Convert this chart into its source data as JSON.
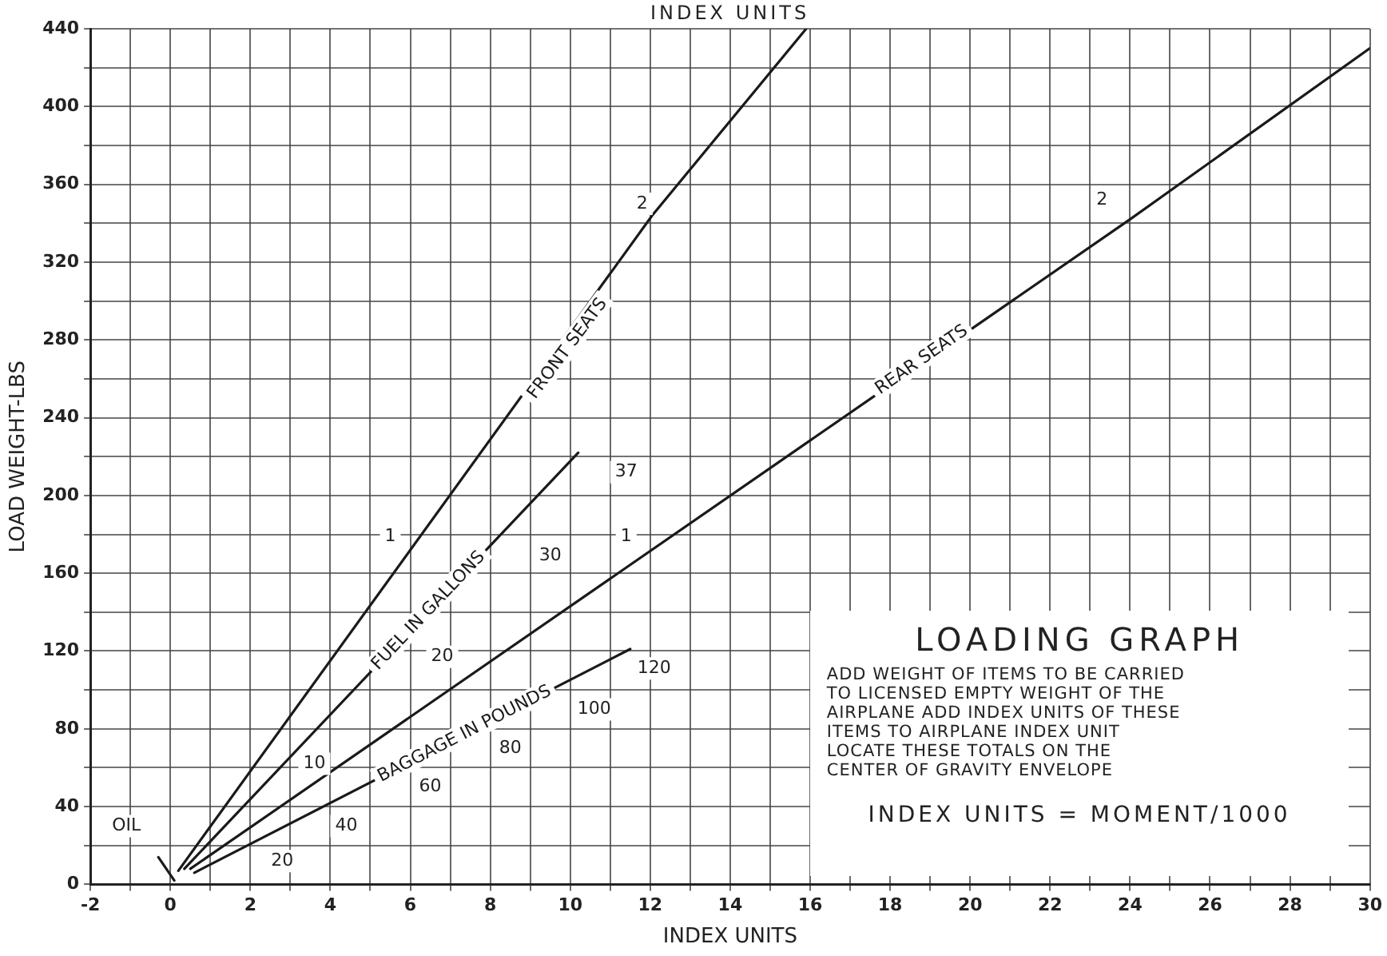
{
  "chart_data": {
    "type": "line",
    "title": "LOADING GRAPH",
    "x2label": "INDEX UNITS",
    "xlabel": "INDEX UNITS",
    "ylabel": "LOAD WEIGHT-LBS",
    "xlim": [
      -2,
      30
    ],
    "ylim": [
      0,
      440
    ],
    "xticks": [
      -2,
      {
        "value": -1,
        "label": null
      },
      0,
      {
        "value": 1,
        "label": null
      },
      2,
      {
        "value": 3,
        "label": null
      },
      4,
      {
        "value": 5,
        "label": null
      },
      6,
      {
        "value": 7,
        "label": null
      },
      8,
      {
        "value": 9,
        "label": null
      },
      10,
      {
        "value": 11,
        "label": null
      },
      12,
      {
        "value": 13,
        "label": null
      },
      14,
      {
        "value": 15,
        "label": null
      },
      16,
      {
        "value": 17,
        "label": null
      },
      18,
      {
        "value": 19,
        "label": null
      },
      20,
      {
        "value": 21,
        "label": null
      },
      22,
      {
        "value": 23,
        "label": null
      },
      24,
      {
        "value": 25,
        "label": null
      },
      26,
      {
        "value": 27,
        "label": null
      },
      28,
      {
        "value": 29,
        "label": null
      },
      30
    ],
    "yticks": [
      0,
      {
        "value": 20,
        "label": null
      },
      40,
      {
        "value": 60,
        "label": null
      },
      80,
      {
        "value": 100,
        "label": null
      },
      120,
      {
        "value": 140,
        "label": null
      },
      160,
      {
        "value": 180,
        "label": null
      },
      200,
      {
        "value": 220,
        "label": null
      },
      240,
      {
        "value": 260,
        "label": null
      },
      280,
      {
        "value": 300,
        "label": null
      },
      320,
      {
        "value": 340,
        "label": null
      },
      360,
      {
        "value": 380,
        "label": null
      },
      400,
      {
        "value": 420,
        "label": null
      },
      440
    ],
    "grid": true,
    "legend": false,
    "marker": "none",
    "line_style": "solid",
    "series": [
      {
        "name": "FRONT SEATS",
        "color": "#1a1a1a",
        "x": [
          0.2,
          12.05,
          15.9
        ],
        "values": [
          7,
          344,
          440
        ]
      },
      {
        "name": "FUEL IN GALLONS",
        "color": "#1a1a1a",
        "x": [
          0.35,
          10.2
        ],
        "values": [
          8,
          222
        ]
      },
      {
        "name": "REAR SEATS",
        "color": "#1a1a1a",
        "x": [
          0.5,
          24,
          30
        ],
        "values": [
          8,
          342,
          430
        ]
      },
      {
        "name": "BAGGAGE IN POUNDS",
        "color": "#1a1a1a",
        "x": [
          0.6,
          11.5
        ],
        "values": [
          6,
          121
        ]
      },
      {
        "color": "#1a1a1a",
        "x": [
          -0.3,
          0.1
        ],
        "values": [
          14,
          2
        ]
      }
    ],
    "annotations": [
      {
        "text": "1",
        "x": 5.5,
        "y": 179
      },
      {
        "text": "2",
        "x": 11.8,
        "y": 350
      },
      {
        "text": "10",
        "x": 3.6,
        "y": 62
      },
      {
        "text": "20",
        "x": 6.8,
        "y": 117
      },
      {
        "text": "30",
        "x": 9.5,
        "y": 169
      },
      {
        "text": "37",
        "x": 11.4,
        "y": 212
      },
      {
        "text": "1",
        "x": 11.4,
        "y": 179
      },
      {
        "text": "2",
        "x": 23.3,
        "y": 352
      },
      {
        "text": "20",
        "x": 2.8,
        "y": 12
      },
      {
        "text": "40",
        "x": 4.4,
        "y": 30
      },
      {
        "text": "60",
        "x": 6.5,
        "y": 50
      },
      {
        "text": "80",
        "x": 8.5,
        "y": 70
      },
      {
        "text": "100",
        "x": 10.6,
        "y": 90
      },
      {
        "text": "120",
        "x": 12.1,
        "y": 111
      },
      {
        "text": "OIL",
        "x": -1.1,
        "y": 30
      },
      "ADD WEIGHT OF ITEMS TO BE CARRIED",
      "TO LICENSED EMPTY WEIGHT OF THE",
      "AIRPLANE  ADD INDEX UNITS OF THESE",
      "ITEMS TO AIRPLANE INDEX UNIT",
      "LOCATE THESE TOTALS ON THE",
      "CENTER OF GRAVITY ENVELOPE",
      "INDEX UNITS = MOMENT/1000"
    ]
  }
}
